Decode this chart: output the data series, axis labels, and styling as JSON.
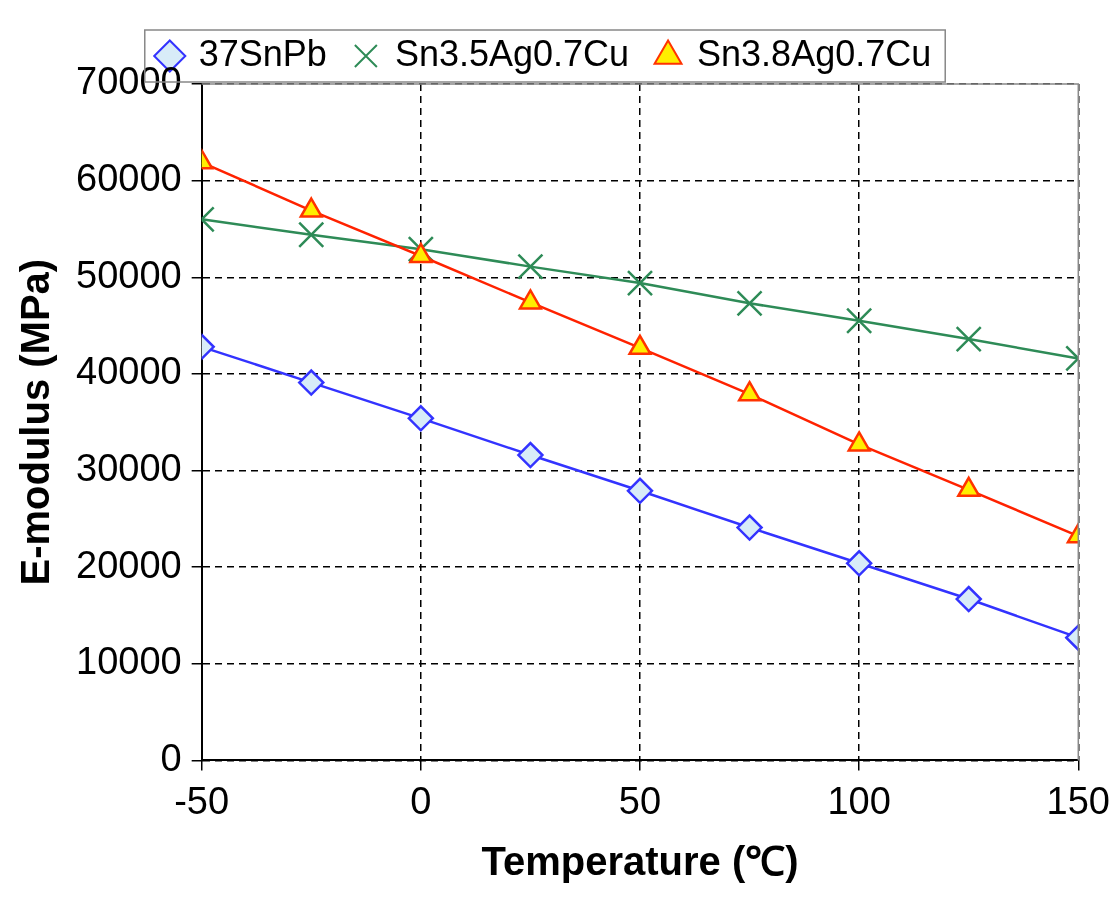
{
  "chart_data": {
    "type": "line",
    "xlabel": "Temperature (℃)",
    "ylabel": "E-modulus (MPa)",
    "x": [
      -50,
      -25,
      0,
      25,
      50,
      75,
      100,
      125,
      150
    ],
    "series": [
      {
        "name": "37SnPb",
        "color": "#3333ff",
        "marker": "diamond",
        "values": [
          42800,
          39100,
          35400,
          31600,
          27900,
          24100,
          20400,
          16700,
          12700
        ]
      },
      {
        "name": "Sn3.5Ag0.7Cu",
        "color": "#2e8b57",
        "marker": "cross",
        "values": [
          56000,
          54400,
          52900,
          51100,
          49400,
          47300,
          45500,
          43600,
          41600
        ]
      },
      {
        "name": "Sn3.8Ag0.7Cu",
        "color": "#ff2200",
        "marker": "triangle",
        "values": [
          61900,
          56900,
          52200,
          47400,
          42700,
          37900,
          32700,
          28000,
          23200
        ]
      }
    ],
    "xlim": [
      -50,
      150
    ],
    "xticks": [
      -50,
      0,
      50,
      100,
      150
    ],
    "ylim": [
      0,
      70000
    ],
    "yticks": [
      0,
      10000,
      20000,
      30000,
      40000,
      50000,
      60000,
      70000
    ],
    "grid": true,
    "legend": "top",
    "line_style": "solid"
  }
}
